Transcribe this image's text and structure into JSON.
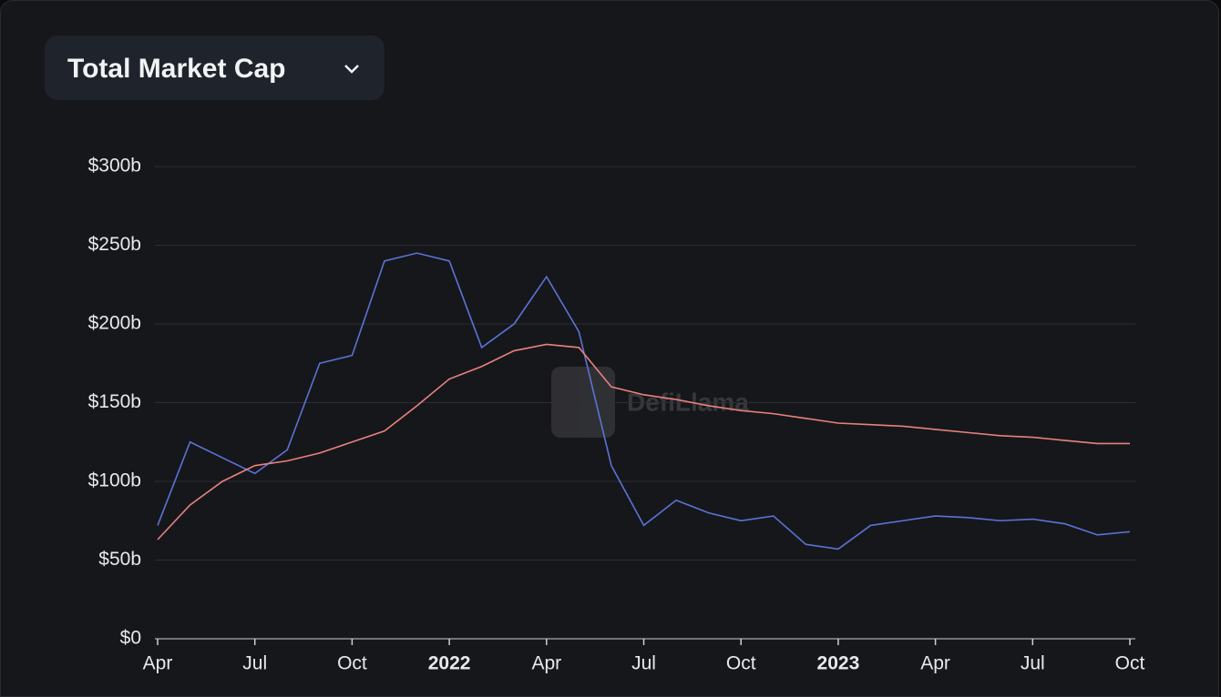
{
  "chart_data": {
    "type": "line",
    "title": "Total Market Cap",
    "watermark": "DefiLlama",
    "x": [
      "2021-04",
      "2021-05",
      "2021-06",
      "2021-07",
      "2021-08",
      "2021-09",
      "2021-10",
      "2021-11",
      "2021-12",
      "2022-01",
      "2022-02",
      "2022-03",
      "2022-04",
      "2022-05",
      "2022-06",
      "2022-07",
      "2022-08",
      "2022-09",
      "2022-10",
      "2022-11",
      "2022-12",
      "2023-01",
      "2023-02",
      "2023-03",
      "2023-04",
      "2023-05",
      "2023-06",
      "2023-07",
      "2023-08",
      "2023-09",
      "2023-10"
    ],
    "series": [
      {
        "color": "#5b73d6",
        "values": [
          72,
          125,
          115,
          105,
          120,
          175,
          180,
          240,
          245,
          240,
          185,
          200,
          230,
          195,
          110,
          72,
          88,
          80,
          75,
          78,
          60,
          57,
          72,
          75,
          78,
          77,
          75,
          76,
          73,
          66,
          68
        ]
      },
      {
        "color": "#e8827d",
        "values": [
          63,
          85,
          100,
          110,
          113,
          118,
          125,
          132,
          148,
          165,
          173,
          183,
          187,
          185,
          160,
          155,
          152,
          148,
          145,
          143,
          140,
          137,
          136,
          135,
          133,
          131,
          129,
          128,
          126,
          124,
          124
        ]
      }
    ],
    "ylim": [
      0,
      300
    ],
    "yticks": [
      {
        "value": 0,
        "label": "$0"
      },
      {
        "value": 50,
        "label": "$50b"
      },
      {
        "value": 100,
        "label": "$100b"
      },
      {
        "value": 150,
        "label": "$150b"
      },
      {
        "value": 200,
        "label": "$200b"
      },
      {
        "value": 250,
        "label": "$250b"
      },
      {
        "value": 300,
        "label": "$300b"
      }
    ],
    "xlim": [
      "2021-04",
      "2023-10"
    ],
    "xticks": [
      {
        "value": "2021-04",
        "label": "Apr"
      },
      {
        "value": "2021-07",
        "label": "Jul"
      },
      {
        "value": "2021-10",
        "label": "Oct"
      },
      {
        "value": "2022-01",
        "label": "2022"
      },
      {
        "value": "2022-04",
        "label": "Apr"
      },
      {
        "value": "2022-07",
        "label": "Jul"
      },
      {
        "value": "2022-10",
        "label": "Oct"
      },
      {
        "value": "2023-01",
        "label": "2023"
      },
      {
        "value": "2023-04",
        "label": "Apr"
      },
      {
        "value": "2023-07",
        "label": "Jul"
      },
      {
        "value": "2023-10",
        "label": "Oct"
      }
    ],
    "grid": true
  }
}
